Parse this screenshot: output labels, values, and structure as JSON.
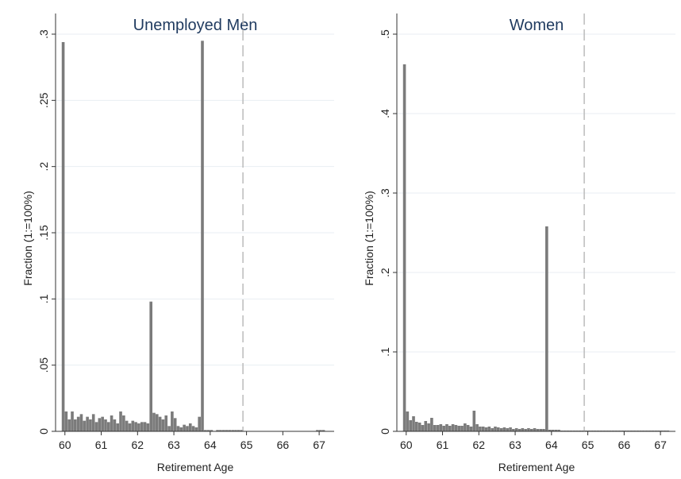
{
  "chart_data": [
    {
      "type": "bar",
      "title": "Unemployed Men",
      "xlabel": "Retirement Age",
      "ylabel": "Fraction (1:=100%)",
      "ylim": [
        0,
        0.3
      ],
      "yticks": [
        0,
        0.05,
        0.1,
        0.15,
        0.2,
        0.25,
        0.3
      ],
      "ytick_labels": [
        "0",
        ".05",
        ".1",
        ".15",
        ".2",
        ".25",
        ".3"
      ],
      "xlim": [
        59.83,
        67.5
      ],
      "xticks": [
        60,
        61,
        62,
        63,
        64,
        65,
        66,
        67
      ],
      "xtick_labels": [
        "60",
        "61",
        "62",
        "63",
        "64",
        "65",
        "66",
        "67"
      ],
      "grid": true,
      "reference_line_x": 65,
      "bin_width_years": 0.0833,
      "x": [
        60.0,
        60.083,
        60.167,
        60.25,
        60.333,
        60.417,
        60.5,
        60.583,
        60.667,
        60.75,
        60.833,
        60.917,
        61.0,
        61.083,
        61.167,
        61.25,
        61.333,
        61.417,
        61.5,
        61.583,
        61.667,
        61.75,
        61.833,
        61.917,
        62.0,
        62.083,
        62.167,
        62.25,
        62.333,
        62.417,
        62.5,
        62.583,
        62.667,
        62.75,
        62.833,
        62.917,
        63.0,
        63.083,
        63.167,
        63.25,
        63.333,
        63.417,
        63.5,
        63.583,
        63.667,
        63.75,
        63.833,
        63.917,
        64.0,
        64.083,
        64.167,
        64.25,
        64.333,
        64.417,
        64.5,
        64.583,
        64.667,
        64.75,
        64.833,
        64.917,
        65.0,
        65.083,
        65.167,
        65.25,
        65.333,
        65.417,
        65.5,
        65.583,
        65.667,
        65.75,
        65.833,
        65.917,
        66.0,
        66.083,
        66.167,
        66.25,
        66.333,
        66.417,
        66.5,
        66.583,
        66.667,
        66.75,
        66.833,
        66.917,
        67.0,
        67.083,
        67.167,
        67.25
      ],
      "values": [
        0.294,
        0.015,
        0.009,
        0.015,
        0.009,
        0.011,
        0.013,
        0.008,
        0.011,
        0.009,
        0.013,
        0.007,
        0.01,
        0.011,
        0.009,
        0.007,
        0.012,
        0.009,
        0.006,
        0.015,
        0.012,
        0.008,
        0.006,
        0.008,
        0.007,
        0.006,
        0.007,
        0.007,
        0.006,
        0.098,
        0.014,
        0.013,
        0.011,
        0.009,
        0.012,
        0.004,
        0.015,
        0.01,
        0.004,
        0.003,
        0.005,
        0.004,
        0.006,
        0.004,
        0.003,
        0.011,
        0.295,
        0.001,
        0.001,
        0.001,
        0.0,
        0.001,
        0.001,
        0.001,
        0.001,
        0.001,
        0.001,
        0.001,
        0.001,
        0.001,
        0.0,
        0.0,
        0.0,
        0.0,
        0.0,
        0.0,
        0.0,
        0.0,
        0.0,
        0.0,
        0.0,
        0.0,
        0.0,
        0.0,
        0.0,
        0.0,
        0.0,
        0.0,
        0.0,
        0.0,
        0.0,
        0.0,
        0.0,
        0.0,
        0.001,
        0.001,
        0.001,
        0.0
      ]
    },
    {
      "type": "bar",
      "title": "Women",
      "xlabel": "Retirement Age",
      "ylabel": "Fraction (1:=100%)",
      "ylim": [
        0,
        0.5
      ],
      "yticks": [
        0,
        0.1,
        0.2,
        0.3,
        0.4,
        0.5
      ],
      "ytick_labels": [
        "0",
        ".1",
        ".2",
        ".3",
        ".4",
        ".5"
      ],
      "xlim": [
        59.83,
        67.5
      ],
      "xticks": [
        60,
        61,
        62,
        63,
        64,
        65,
        66,
        67
      ],
      "xtick_labels": [
        "60",
        "61",
        "62",
        "63",
        "64",
        "65",
        "66",
        "67"
      ],
      "grid": true,
      "reference_line_x": 65,
      "bin_width_years": 0.0833,
      "x": [
        60.0,
        60.083,
        60.167,
        60.25,
        60.333,
        60.417,
        60.5,
        60.583,
        60.667,
        60.75,
        60.833,
        60.917,
        61.0,
        61.083,
        61.167,
        61.25,
        61.333,
        61.417,
        61.5,
        61.583,
        61.667,
        61.75,
        61.833,
        61.917,
        62.0,
        62.083,
        62.167,
        62.25,
        62.333,
        62.417,
        62.5,
        62.583,
        62.667,
        62.75,
        62.833,
        62.917,
        63.0,
        63.083,
        63.167,
        63.25,
        63.333,
        63.417,
        63.5,
        63.583,
        63.667,
        63.75,
        63.833,
        63.917,
        64.0,
        64.083,
        64.167,
        64.25,
        64.333,
        64.417,
        64.5,
        64.583,
        64.667,
        64.75,
        64.833,
        64.917,
        65.0,
        65.083,
        65.167,
        65.25,
        65.333,
        65.417,
        65.5,
        65.583,
        65.667,
        65.75,
        65.833,
        65.917,
        66.0,
        66.083,
        66.167,
        66.25,
        66.333,
        66.417,
        66.5,
        66.583,
        66.667,
        66.75,
        66.833,
        66.917,
        67.0,
        67.083,
        67.167,
        67.25
      ],
      "values": [
        0.462,
        0.025,
        0.014,
        0.019,
        0.012,
        0.011,
        0.008,
        0.013,
        0.01,
        0.017,
        0.008,
        0.008,
        0.009,
        0.007,
        0.009,
        0.007,
        0.009,
        0.008,
        0.007,
        0.007,
        0.01,
        0.008,
        0.006,
        0.026,
        0.009,
        0.006,
        0.006,
        0.005,
        0.006,
        0.004,
        0.006,
        0.005,
        0.004,
        0.005,
        0.004,
        0.005,
        0.003,
        0.004,
        0.003,
        0.004,
        0.003,
        0.004,
        0.003,
        0.004,
        0.003,
        0.003,
        0.003,
        0.258,
        0.002,
        0.002,
        0.002,
        0.002,
        0.001,
        0.001,
        0.001,
        0.001,
        0.001,
        0.001,
        0.001,
        0.001,
        0.001,
        0.001,
        0.001,
        0.001,
        0.001,
        0.001,
        0.001,
        0.001,
        0.001,
        0.001,
        0.001,
        0.001,
        0.001,
        0.001,
        0.001,
        0.001,
        0.001,
        0.001,
        0.001,
        0.001,
        0.001,
        0.001,
        0.001,
        0.001,
        0.001,
        0.001,
        0.001,
        0.001
      ]
    }
  ]
}
